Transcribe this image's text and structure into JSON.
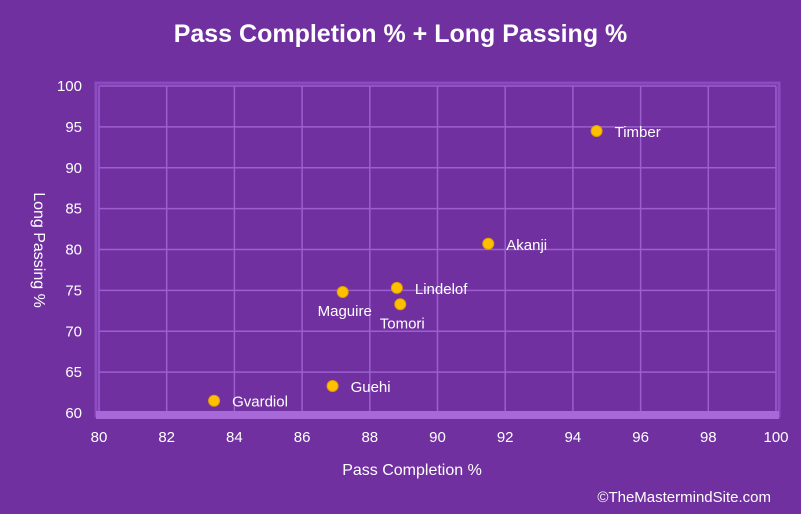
{
  "chart_data": {
    "type": "scatter",
    "title": "Pass Completion % + Long Passing %",
    "xlabel": "Pass Completion %",
    "ylabel": "Long Passing %",
    "xlim": [
      80,
      100
    ],
    "ylim": [
      60,
      100
    ],
    "xticks": [
      80,
      82,
      84,
      86,
      88,
      90,
      92,
      94,
      96,
      98,
      100
    ],
    "yticks": [
      60,
      65,
      70,
      75,
      80,
      85,
      90,
      95,
      100
    ],
    "grid": true,
    "points": [
      {
        "label": "Timber",
        "x": 94.7,
        "y": 94.5,
        "label_pos": "right"
      },
      {
        "label": "Akanji",
        "x": 91.5,
        "y": 80.7,
        "label_pos": "right"
      },
      {
        "label": "Lindelof",
        "x": 88.8,
        "y": 75.3,
        "label_pos": "right"
      },
      {
        "label": "Maguire",
        "x": 87.2,
        "y": 74.8,
        "label_pos": "below"
      },
      {
        "label": "Tomori",
        "x": 88.9,
        "y": 73.3,
        "label_pos": "below"
      },
      {
        "label": "Guehi",
        "x": 86.9,
        "y": 63.3,
        "label_pos": "right"
      },
      {
        "label": "Gvardiol",
        "x": 83.4,
        "y": 61.5,
        "label_pos": "right"
      }
    ],
    "colors": {
      "background": "#7030a0",
      "point": "#ffc000",
      "grid": "#9b5fcf",
      "text": "#ffffff"
    }
  },
  "credit": "©TheMastermindSite.com"
}
